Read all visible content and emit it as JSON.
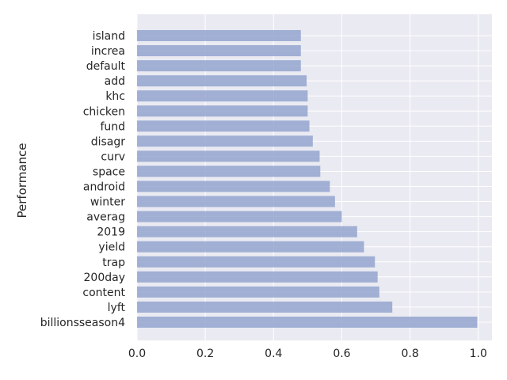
{
  "chart_data": {
    "type": "bar",
    "orientation": "horizontal",
    "title": "",
    "xlabel": "",
    "ylabel": "Performance",
    "xlim": [
      0,
      1.04
    ],
    "xticks": [
      0.0,
      0.2,
      0.4,
      0.6,
      0.8,
      1.0
    ],
    "xtick_labels": [
      "0.0",
      "0.2",
      "0.4",
      "0.6",
      "0.8",
      "1.0"
    ],
    "grid": true,
    "bar_color": "#8da0cb",
    "background_color": "#eaeaf2",
    "categories": [
      "island",
      "increa",
      "default",
      "add",
      "khc",
      "chicken",
      "fund",
      "disagr",
      "curv",
      "space",
      "android",
      "winter",
      "averag",
      "2019",
      "yield",
      "trap",
      "200day",
      "content",
      "lyft",
      "billionsseason4"
    ],
    "values": [
      0.48,
      0.48,
      0.48,
      0.497,
      0.5,
      0.5,
      0.505,
      0.515,
      0.535,
      0.537,
      0.565,
      0.58,
      0.6,
      0.645,
      0.665,
      0.697,
      0.705,
      0.71,
      0.748,
      0.997
    ]
  }
}
